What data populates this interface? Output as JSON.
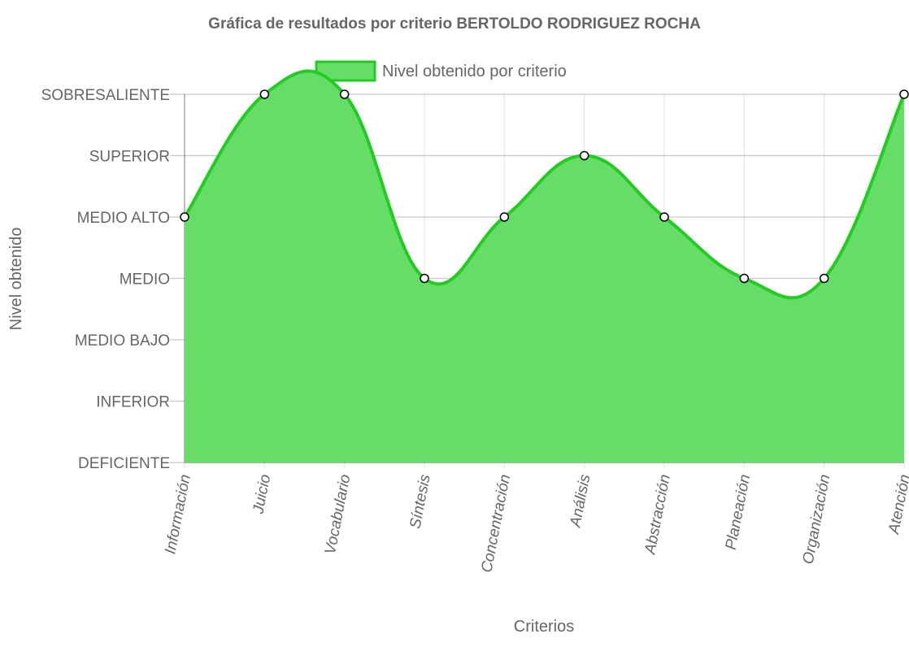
{
  "chart_data": {
    "type": "area",
    "title": "Gráfica de resultados por criterio BERTOLDO RODRIGUEZ ROCHA",
    "xlabel": "Criterios",
    "ylabel": "Nivel obtenido",
    "categories": [
      "Información",
      "Juicio",
      "Vocabulario",
      "Síntesis",
      "Concentración",
      "Análisis",
      "Abstracción",
      "Planeación",
      "Organización",
      "Atención"
    ],
    "y_levels": [
      "DEFICIENTE",
      "INFERIOR",
      "MEDIO BAJO",
      "MEDIO",
      "MEDIO ALTO",
      "SUPERIOR",
      "SOBRESALIENTE"
    ],
    "ylim": [
      0,
      6
    ],
    "series": [
      {
        "name": "Nivel obtenido por criterio",
        "values": [
          4,
          6,
          6,
          3,
          4,
          5,
          4,
          3,
          3,
          6
        ],
        "value_labels": [
          "MEDIO ALTO",
          "SOBRESALIENTE",
          "SOBRESALIENTE",
          "MEDIO",
          "MEDIO ALTO",
          "SUPERIOR",
          "MEDIO ALTO",
          "MEDIO",
          "MEDIO",
          "SOBRESALIENTE"
        ],
        "fill_color": "#66dd66",
        "line_color": "#22cc22"
      }
    ],
    "grid": true,
    "legend": "top-center",
    "smooth": true
  }
}
